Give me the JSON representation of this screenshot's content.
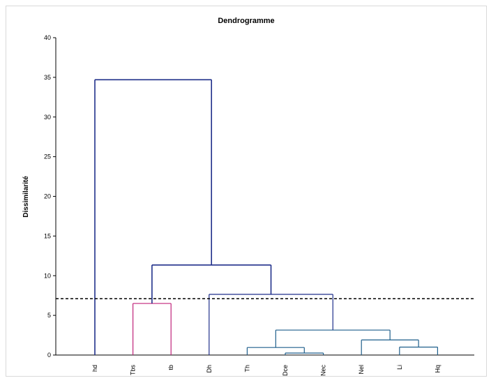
{
  "chart_data": {
    "type": "dendrogram",
    "title": "Dendrogramme",
    "ylabel": "Dissimilarité",
    "xlabel": "",
    "ylim": [
      0,
      40
    ],
    "yticks": [
      0,
      5,
      10,
      15,
      20,
      25,
      30,
      35,
      40
    ],
    "grid": false,
    "leaves": [
      "hd",
      "Tbs",
      "tb",
      "Dh",
      "Th",
      "Dce",
      "Nec",
      "Nel",
      "Li",
      "Hq"
    ],
    "cut_height": 7.1,
    "merges": [
      {
        "id": "M1",
        "left": "Dce",
        "right": "Nec",
        "height": 0.25,
        "color": "#1f5f8b"
      },
      {
        "id": "M2",
        "left": "Li",
        "right": "Hq",
        "height": 1.0,
        "color": "#1f5f8b"
      },
      {
        "id": "M3",
        "left": "Th",
        "right": "M1",
        "height": 0.95,
        "color": "#1f5f8b"
      },
      {
        "id": "M4",
        "left": "Nel",
        "right": "M2",
        "height": 1.9,
        "color": "#1f5f8b"
      },
      {
        "id": "M5",
        "left": "M3",
        "right": "M4",
        "height": 3.15,
        "color": "#1f5f8b"
      },
      {
        "id": "M6",
        "left": "Tbs",
        "right": "tb",
        "height": 6.5,
        "color": "#c0237a"
      },
      {
        "id": "M7",
        "left": "Dh",
        "right": "M5",
        "height": 7.65,
        "color": "#1f2f8a"
      },
      {
        "id": "M8",
        "left": "M6",
        "right": "M7",
        "height": 11.35,
        "color": "#1f2f8a"
      },
      {
        "id": "M9",
        "left": "hd",
        "right": "M8",
        "height": 34.7,
        "color": "#1f2f8a"
      }
    ],
    "leaf_colors": {
      "hd": "#1f2f8a",
      "Tbs": "#c0237a",
      "tb": "#c0237a",
      "Dh": "#1f2f8a"
    }
  }
}
